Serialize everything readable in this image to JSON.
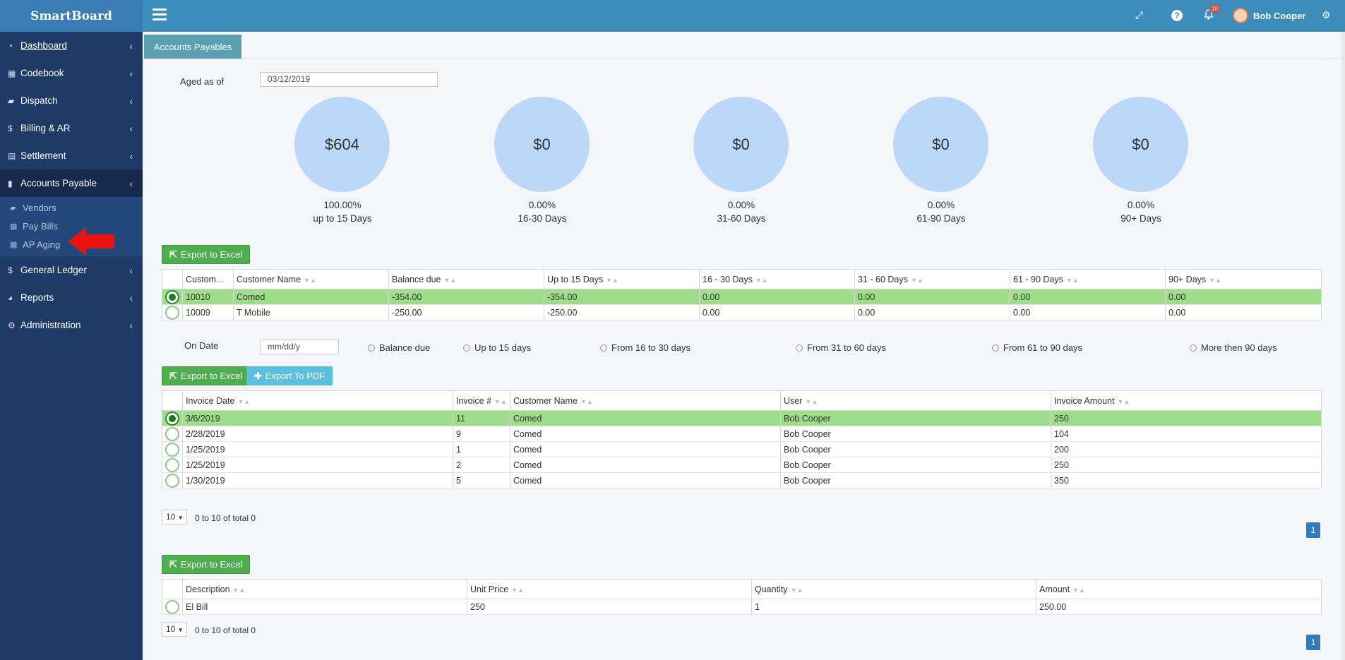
{
  "app": {
    "brand": "SmartBoard"
  },
  "sidebar": {
    "items": [
      {
        "label": "Dashboard",
        "icon": "dashboard-icon"
      },
      {
        "label": "Codebook",
        "icon": "grid-icon"
      },
      {
        "label": "Dispatch",
        "icon": "truck-icon"
      },
      {
        "label": "Billing & AR",
        "icon": "dollar-icon"
      },
      {
        "label": "Settlement",
        "icon": "calculator-icon"
      },
      {
        "label": "Accounts Payable",
        "icon": "book-icon"
      },
      {
        "label": "General Ledger",
        "icon": "dollar-icon"
      },
      {
        "label": "Reports",
        "icon": "pie-icon"
      },
      {
        "label": "Administration",
        "icon": "cogs-icon"
      }
    ],
    "sub_items": [
      {
        "label": "Vendors",
        "icon": "truck-icon"
      },
      {
        "label": "Pay Bills",
        "icon": "table-icon"
      },
      {
        "label": "AP Aging",
        "icon": "table-icon"
      }
    ]
  },
  "topbar": {
    "notification_count": "10",
    "user_name": "Bob Cooper"
  },
  "page": {
    "tab": "Accounts Payables",
    "aged_label": "Aged as of",
    "aged_value": "03/12/2019"
  },
  "buckets": [
    {
      "amount": "$604",
      "pct": "100.00%",
      "caption": "up to 15 Days"
    },
    {
      "amount": "$0",
      "pct": "0.00%",
      "caption": "16-30 Days"
    },
    {
      "amount": "$0",
      "pct": "0.00%",
      "caption": "31-60 Days"
    },
    {
      "amount": "$0",
      "pct": "0.00%",
      "caption": "61-90 Days"
    },
    {
      "amount": "$0",
      "pct": "0.00%",
      "caption": "90+ Days"
    }
  ],
  "summary": {
    "export_label": "Export to Excel",
    "headers": [
      "Custom...",
      "Customer Name",
      "Balance due",
      "Up to 15 Days",
      "16 - 30 Days",
      "31 - 60 Days",
      "61 - 90 Days",
      "90+ Days"
    ],
    "rows": [
      [
        "10010",
        "Comed",
        "-354.00",
        "-354.00",
        "0.00",
        "0.00",
        "0.00",
        "0.00"
      ],
      [
        "10009",
        "T Mobile",
        "-250.00",
        "-250.00",
        "0.00",
        "0.00",
        "0.00",
        "0.00"
      ]
    ]
  },
  "filters": {
    "on_date_label": "On Date",
    "date_placeholder": "mm/dd/y",
    "options": [
      "Balance due",
      "Up to 15 days",
      "From 16 to 30 days",
      "From 31 to 60 days",
      "From 61 to 90 days",
      "More then 90 days"
    ]
  },
  "invoices": {
    "export_excel": "Export to Excel",
    "export_pdf": "Export To PDF",
    "headers": [
      "Invoice Date",
      "Invoice #",
      "Customer Name",
      "User",
      "Invoice Amount"
    ],
    "rows": [
      [
        "3/6/2019",
        "11",
        "Comed",
        "Bob Cooper",
        "250"
      ],
      [
        "2/28/2019",
        "9",
        "Comed",
        "Bob Cooper",
        "104"
      ],
      [
        "1/25/2019",
        "1",
        "Comed",
        "Bob Cooper",
        "200"
      ],
      [
        "1/25/2019",
        "2",
        "Comed",
        "Bob Cooper",
        "250"
      ],
      [
        "1/30/2019",
        "5",
        "Comed",
        "Bob Cooper",
        "350"
      ]
    ],
    "page_size": "10",
    "page_info": "0 to 10 of total 0",
    "page": "1"
  },
  "details": {
    "export_label": "Export to Excel",
    "headers": [
      "Description",
      "Unit Price",
      "Quantity",
      "Amount"
    ],
    "rows": [
      [
        "El Bill",
        "250",
        "1",
        "250.00"
      ]
    ],
    "page_size": "10",
    "page_info": "0 to 10 of total 0",
    "page": "1"
  }
}
